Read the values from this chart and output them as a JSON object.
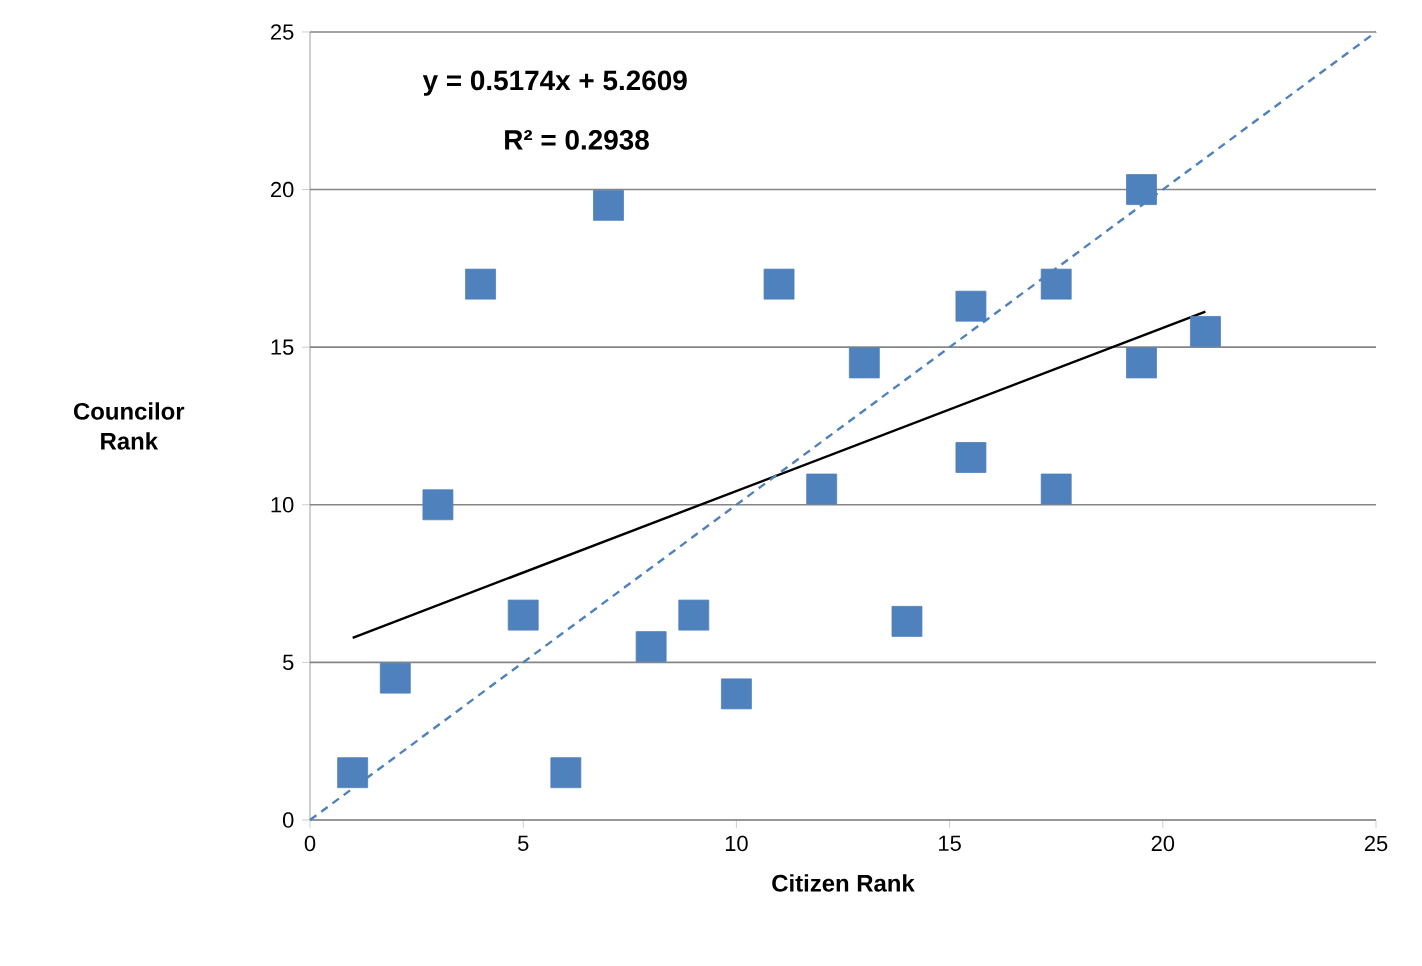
{
  "chart_data": {
    "type": "scatter",
    "xlabel": "Citizen Rank",
    "ylabel": "Councilor Rank",
    "xlim": [
      0,
      25
    ],
    "ylim": [
      0,
      25
    ],
    "xticks": [
      0,
      5,
      10,
      15,
      20,
      25
    ],
    "yticks": [
      0,
      5,
      10,
      15,
      20,
      25
    ],
    "grid": "y",
    "annotations": [
      "y = 0.5174x + 5.2609",
      "R² = 0.2938"
    ],
    "series": [
      {
        "color": "#4f81bd",
        "marker": "square",
        "x": [
          1,
          2,
          3,
          4,
          5,
          6,
          7,
          8,
          9,
          10,
          11,
          12,
          13,
          14,
          15.5,
          15.5,
          17.5,
          17.5,
          19.5,
          19.5,
          21
        ],
        "values": [
          1.5,
          4.5,
          10,
          17,
          6.5,
          1.5,
          19.5,
          5.5,
          6.5,
          4,
          17,
          10.5,
          14.5,
          6.3,
          16.3,
          11.5,
          17,
          10.5,
          20,
          14.5,
          15.5
        ]
      },
      {
        "type": "line",
        "color": "#000000",
        "line_style": "solid",
        "marker": "none",
        "x": [
          1,
          21
        ],
        "values": [
          5.78,
          16.13
        ]
      },
      {
        "type": "line",
        "color": "#4f81bd",
        "line_style": "dashed",
        "marker": "none",
        "x": [
          0,
          25
        ],
        "values": [
          0,
          25
        ]
      }
    ]
  }
}
